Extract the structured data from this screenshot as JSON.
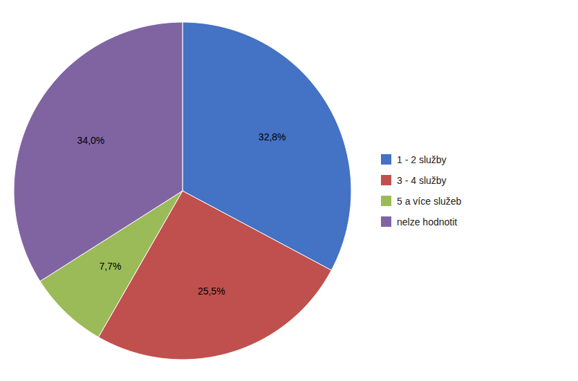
{
  "chart_data": {
    "type": "pie",
    "categories": [
      "1 - 2 služby",
      "3 - 4 služby",
      "5 a více služeb",
      "nelze hodnotit"
    ],
    "values": [
      32.8,
      25.5,
      7.7,
      34.0
    ],
    "value_labels": [
      "32,8%",
      "25,5%",
      "7,7%",
      "34,0%"
    ],
    "colors": [
      "#4472C4",
      "#C0504D",
      "#9BBB59",
      "#8064A2"
    ],
    "data_labels": true,
    "legend": "right"
  }
}
